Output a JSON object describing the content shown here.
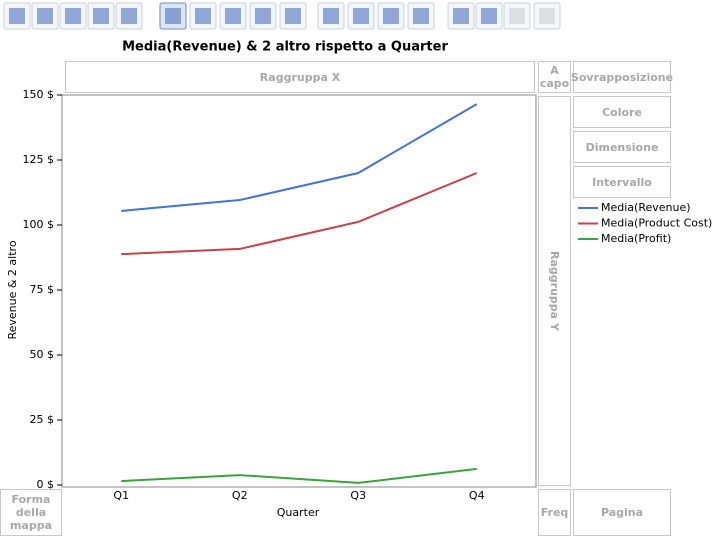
{
  "chart_data": {
    "type": "line",
    "title": "Media(Revenue) & 2 altro rispetto a Quarter",
    "x_label": "Quarter",
    "y_label": "Revenue & 2 altro",
    "categories": [
      "Q1",
      "Q2",
      "Q3",
      "Q4"
    ],
    "series": [
      {
        "name": "Media(Revenue)",
        "color": "#4472d8",
        "values": [
          105.4,
          109.6,
          120,
          146.5
        ]
      },
      {
        "name": "Media(Product Cost)",
        "color": "#c8414b",
        "values": [
          88.8,
          90.8,
          101.2,
          120
        ]
      },
      {
        "name": "Media(Profit)",
        "color": "#3aa43a",
        "values": [
          1.5,
          3.8,
          0.8,
          6.2
        ]
      }
    ],
    "ylim": [
      0,
      150
    ],
    "yticks": [
      {
        "value": 0,
        "label": "0 $"
      },
      {
        "value": 25,
        "label": "25 $"
      },
      {
        "value": 50,
        "label": "50 $"
      },
      {
        "value": 75,
        "label": "75 $"
      },
      {
        "value": 100,
        "label": "100 $"
      },
      {
        "value": 125,
        "label": "125 $"
      },
      {
        "value": 150,
        "label": "150 $"
      }
    ],
    "grid": false
  },
  "drop_zones": {
    "group_x": "Raggruppa X",
    "wrap": "A capo",
    "overlay": "Sovrapposizione",
    "color": "Colore",
    "size": "Dimensione",
    "interval": "Intervallo",
    "group_y": "Raggruppa Y",
    "map_shape": "Forma della mappa",
    "freq": "Freq",
    "page": "Pagina"
  }
}
